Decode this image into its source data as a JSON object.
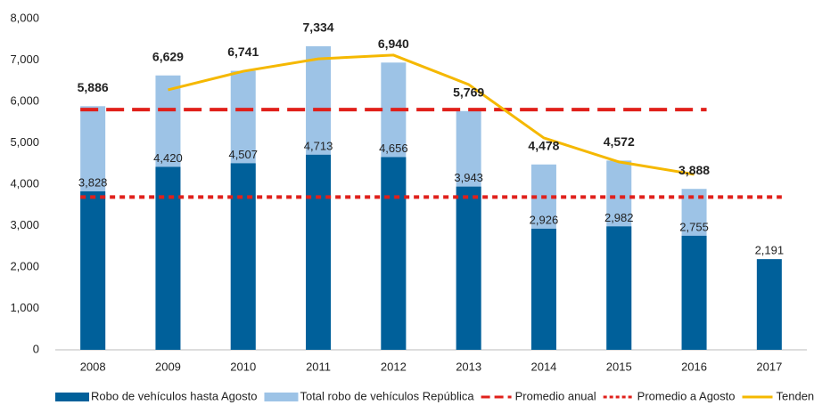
{
  "chart_data": {
    "type": "bar",
    "categories": [
      "2008",
      "2009",
      "2010",
      "2011",
      "2012",
      "2013",
      "2014",
      "2015",
      "2016",
      "2017"
    ],
    "series": [
      {
        "name": "Robo de vehículos hasta Agosto",
        "color": "#00609a",
        "style": "bar",
        "values": [
          3828,
          4420,
          4507,
          4713,
          4656,
          3943,
          2926,
          2982,
          2755,
          2191
        ],
        "value_labels": [
          "3,828",
          "4,420",
          "4,507",
          "4,713",
          "4,656",
          "3,943",
          "2,926",
          "2,982",
          "2,755",
          "2,191"
        ]
      },
      {
        "name": "Total robo de vehículos República",
        "color": "#9dc3e6",
        "style": "bar",
        "values": [
          5886,
          6629,
          6741,
          7334,
          6940,
          5769,
          4478,
          4572,
          3888,
          null
        ],
        "value_labels": [
          "5,886",
          "6,629",
          "6,741",
          "7,334",
          "6,940",
          "5,769",
          "4,478",
          "4,572",
          "3,888",
          null
        ]
      },
      {
        "name": "Promedio anual",
        "color": "#e0201b",
        "style": "dashed",
        "values": [
          5804,
          5804,
          5804,
          5804,
          5804,
          5804,
          5804,
          5804,
          5804,
          null
        ]
      },
      {
        "name": "Promedio a Agosto",
        "color": "#e0201b",
        "style": "dotted",
        "values": [
          3692,
          3692,
          3692,
          3692,
          3692,
          3692,
          3692,
          3692,
          3692,
          3692
        ]
      },
      {
        "name": "Tendencia anual",
        "color": "#f5b800",
        "style": "line",
        "values": [
          null,
          6280,
          6730,
          7030,
          7120,
          6410,
          5120,
          4540,
          4240,
          null
        ]
      }
    ],
    "ylim": [
      0,
      8000
    ],
    "yticks": [
      0,
      {
        "value": 1000,
        "label": "1,000"
      },
      {
        "value": 2000,
        "label": "2,000"
      },
      {
        "value": 3000,
        "label": "3,000"
      },
      {
        "value": 4000,
        "label": "4,000"
      },
      {
        "value": 5000,
        "label": "5,000"
      },
      {
        "value": 6000,
        "label": "6,000"
      },
      {
        "value": 7000,
        "label": "7,000"
      },
      {
        "value": 8000,
        "label": "8,000"
      }
    ],
    "grid": false,
    "legend": "bottom"
  }
}
